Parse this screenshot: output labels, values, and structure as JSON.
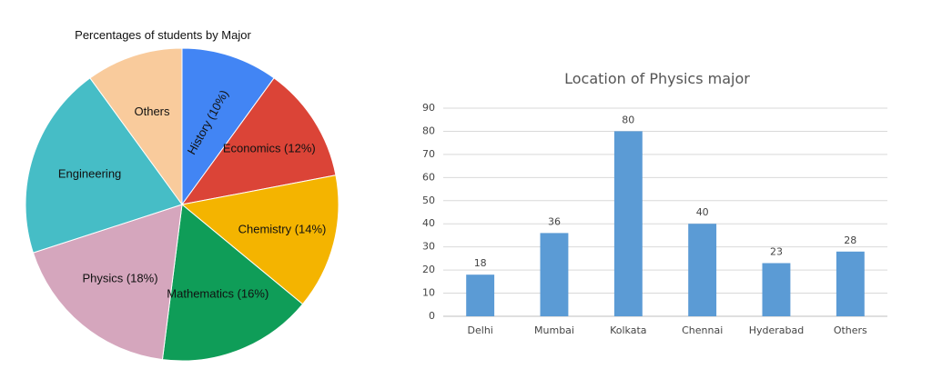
{
  "chart_data": [
    {
      "type": "pie",
      "title": "Percentages of students by Major",
      "slices": [
        {
          "label": "History (10%)",
          "value": 10,
          "color": "#4285f4"
        },
        {
          "label": "Economics (12%)",
          "value": 12,
          "color": "#db4437"
        },
        {
          "label": "Chemistry (14%)",
          "value": 14,
          "color": "#f4b400"
        },
        {
          "label": "Mathematics (16%)",
          "value": 16,
          "color": "#0f9d58"
        },
        {
          "label": "Physics (18%)",
          "value": 18,
          "color": "#d5a6bd"
        },
        {
          "label": "Engineering",
          "value": 20,
          "color": "#46bdc6"
        },
        {
          "label": "Others",
          "value": 10,
          "color": "#f9cb9c"
        }
      ]
    },
    {
      "type": "bar",
      "title": "Location of Physics major",
      "categories": [
        "Delhi",
        "Mumbai",
        "Kolkata",
        "Chennai",
        "Hyderabad",
        "Others"
      ],
      "values": [
        18,
        36,
        80,
        40,
        23,
        28
      ],
      "ylim": [
        0,
        90
      ],
      "yticks": [
        0,
        10,
        20,
        30,
        40,
        50,
        60,
        70,
        80,
        90
      ],
      "grid": true,
      "data_labels": true,
      "bar_color": "#5b9bd5"
    }
  ]
}
